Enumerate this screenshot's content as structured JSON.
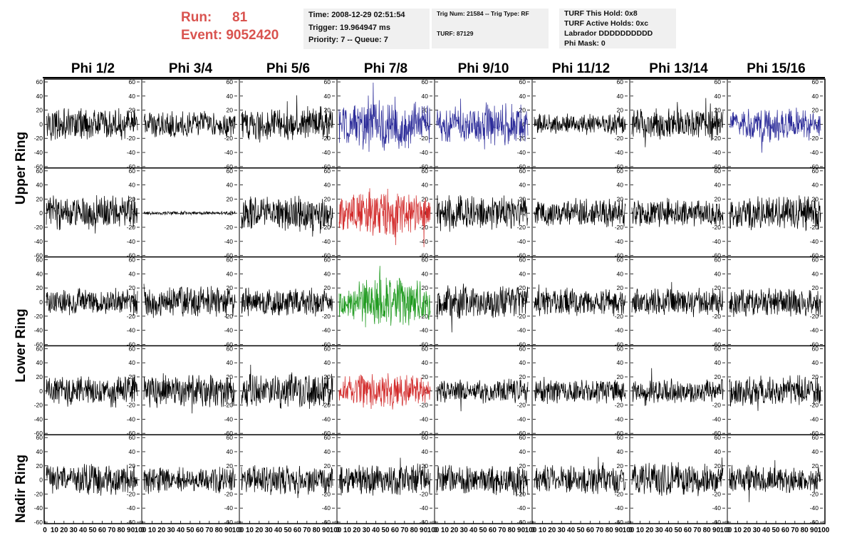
{
  "run": {
    "label": "Run:",
    "value": "81"
  },
  "event": {
    "label": "Event:",
    "value": "9052420"
  },
  "info_box_1": [
    "Time: 2008-12-29 02:51:54",
    "Trigger: 19.964947 ms",
    "Priority: 7 -- Queue: 7"
  ],
  "info_box_2": [
    "Trig Num: 21584 -- Trig Type: RF",
    "TURF: 87129"
  ],
  "info_box_3": [
    "TURF This Hold: 0x8",
    "TURF Active Holds: 0xc",
    "Labrador DDDDDDDDDD",
    "Phi Mask: 0"
  ],
  "column_headers": [
    "Phi 1/2",
    "Phi 3/4",
    "Phi 5/6",
    "Phi 7/8",
    "Phi 9/10",
    "Phi 11/12",
    "Phi 13/14",
    "Phi 15/16"
  ],
  "row_group_labels": [
    "Upper Ring",
    "Lower Ring",
    "Nadir Ring"
  ],
  "colors": {
    "run_text": "#d9534f",
    "black": "#000000",
    "blue": "#2b2b99",
    "red": "#d22b2b",
    "green": "#1f9a1f"
  },
  "chart_data": {
    "type": "line",
    "rows": 5,
    "cols": 8,
    "ylim": [
      -60,
      60
    ],
    "xlim": [
      0,
      100
    ],
    "y_ticks": [
      -60,
      -40,
      -20,
      0,
      20,
      40,
      60
    ],
    "x_tick_labels": [
      "0",
      "10",
      "20",
      "30",
      "40",
      "50",
      "60",
      "70",
      "80",
      "90",
      "100"
    ],
    "panels": [
      {
        "row": 0,
        "col": 0,
        "color": "black",
        "amplitude": 18
      },
      {
        "row": 0,
        "col": 1,
        "color": "black",
        "amplitude": 15
      },
      {
        "row": 0,
        "col": 2,
        "color": "black",
        "amplitude": 20
      },
      {
        "row": 0,
        "col": 3,
        "color": "blue",
        "amplitude": 35
      },
      {
        "row": 0,
        "col": 4,
        "color": "blue",
        "amplitude": 28
      },
      {
        "row": 0,
        "col": 5,
        "color": "black",
        "amplitude": 12
      },
      {
        "row": 0,
        "col": 6,
        "color": "black",
        "amplitude": 18
      },
      {
        "row": 0,
        "col": 7,
        "color": "blue",
        "amplitude": 20
      },
      {
        "row": 1,
        "col": 0,
        "color": "black",
        "amplitude": 20
      },
      {
        "row": 1,
        "col": 1,
        "color": "black",
        "amplitude": 2
      },
      {
        "row": 1,
        "col": 2,
        "color": "black",
        "amplitude": 20
      },
      {
        "row": 1,
        "col": 3,
        "color": "red",
        "amplitude": 30
      },
      {
        "row": 1,
        "col": 4,
        "color": "black",
        "amplitude": 20
      },
      {
        "row": 1,
        "col": 5,
        "color": "black",
        "amplitude": 16
      },
      {
        "row": 1,
        "col": 6,
        "color": "black",
        "amplitude": 16
      },
      {
        "row": 1,
        "col": 7,
        "color": "black",
        "amplitude": 20
      },
      {
        "row": 2,
        "col": 0,
        "color": "black",
        "amplitude": 16
      },
      {
        "row": 2,
        "col": 1,
        "color": "black",
        "amplitude": 18
      },
      {
        "row": 2,
        "col": 2,
        "color": "black",
        "amplitude": 16
      },
      {
        "row": 2,
        "col": 3,
        "color": "green",
        "amplitude": 32
      },
      {
        "row": 2,
        "col": 4,
        "color": "black",
        "amplitude": 20
      },
      {
        "row": 2,
        "col": 5,
        "color": "black",
        "amplitude": 16
      },
      {
        "row": 2,
        "col": 6,
        "color": "black",
        "amplitude": 16
      },
      {
        "row": 2,
        "col": 7,
        "color": "black",
        "amplitude": 16
      },
      {
        "row": 3,
        "col": 0,
        "color": "black",
        "amplitude": 18
      },
      {
        "row": 3,
        "col": 1,
        "color": "black",
        "amplitude": 20
      },
      {
        "row": 3,
        "col": 2,
        "color": "black",
        "amplitude": 20
      },
      {
        "row": 3,
        "col": 3,
        "color": "red",
        "amplitude": 22
      },
      {
        "row": 3,
        "col": 4,
        "color": "black",
        "amplitude": 14
      },
      {
        "row": 3,
        "col": 5,
        "color": "black",
        "amplitude": 14
      },
      {
        "row": 3,
        "col": 6,
        "color": "black",
        "amplitude": 14
      },
      {
        "row": 3,
        "col": 7,
        "color": "black",
        "amplitude": 18
      },
      {
        "row": 4,
        "col": 0,
        "color": "black",
        "amplitude": 18
      },
      {
        "row": 4,
        "col": 1,
        "color": "black",
        "amplitude": 16
      },
      {
        "row": 4,
        "col": 2,
        "color": "black",
        "amplitude": 18
      },
      {
        "row": 4,
        "col": 3,
        "color": "black",
        "amplitude": 18
      },
      {
        "row": 4,
        "col": 4,
        "color": "black",
        "amplitude": 18
      },
      {
        "row": 4,
        "col": 5,
        "color": "black",
        "amplitude": 16
      },
      {
        "row": 4,
        "col": 6,
        "color": "black",
        "amplitude": 20
      },
      {
        "row": 4,
        "col": 7,
        "color": "black",
        "amplitude": 16
      }
    ]
  }
}
